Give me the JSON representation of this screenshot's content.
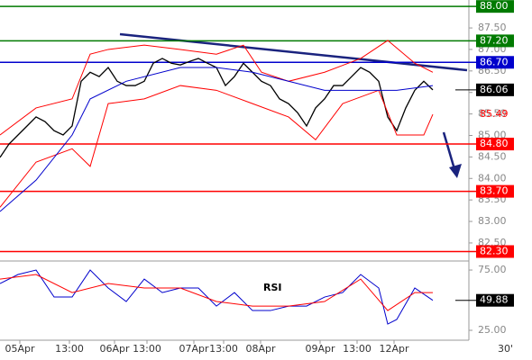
{
  "chart_data": [
    {
      "type": "line",
      "xlim": [
        0,
        104
      ],
      "ylim": [
        82.08,
        88.15
      ],
      "yticks": [
        {
          "value": 82.5,
          "label": "82.50"
        },
        {
          "value": 83,
          "label": "83.00"
        },
        {
          "value": 83.5,
          "label": "83.50"
        },
        {
          "value": 84,
          "label": "84.00"
        },
        {
          "value": 84.5,
          "label": "84.50"
        },
        {
          "value": 85,
          "label": "85.00"
        },
        {
          "value": 85.5,
          "label": "85.50"
        },
        {
          "value": 86,
          "label": "86.00"
        },
        {
          "value": 86.5,
          "label": "86.50"
        },
        {
          "value": 87,
          "label": "87.00"
        },
        {
          "value": 87.5,
          "label": "87.50"
        }
      ],
      "levels": [
        {
          "value": 88,
          "label": "88.00",
          "color": "#007a00"
        },
        {
          "value": 87.2,
          "label": "87.20",
          "color": "#007a00"
        },
        {
          "value": 86.7,
          "label": "86.70",
          "color": "#0000cc"
        },
        {
          "value": 84.8,
          "label": "84.80",
          "color": "#ff0000"
        },
        {
          "value": 83.7,
          "label": "83.70",
          "color": "#ff0000"
        },
        {
          "value": 82.3,
          "label": "82.30",
          "color": "#ff0000"
        }
      ],
      "markers": [
        {
          "value": 86.06,
          "label": "86.06",
          "color": "#000000",
          "boxed": true
        },
        {
          "value": 85.49,
          "label": "85.49",
          "color": "#ff0000",
          "boxed": false
        }
      ],
      "series": [
        {
          "color": "#000000",
          "width": 1.3,
          "x": [
            0,
            2,
            4,
            6,
            8,
            10,
            12,
            14,
            16,
            18,
            20,
            22,
            24,
            26,
            28,
            30,
            32,
            34,
            36,
            38,
            40,
            42,
            44,
            46,
            48,
            50,
            52,
            54,
            56,
            58,
            60,
            62,
            64,
            66,
            68,
            70,
            72,
            74,
            76,
            78,
            80,
            82,
            84,
            86,
            88,
            90,
            92,
            94,
            96
          ],
          "values": [
            84.49,
            84.8,
            85.01,
            85.22,
            85.43,
            85.32,
            85.11,
            85.01,
            85.22,
            86.26,
            86.47,
            86.37,
            86.58,
            86.26,
            86.16,
            86.16,
            86.26,
            86.68,
            86.79,
            86.68,
            86.64,
            86.72,
            86.79,
            86.68,
            86.58,
            86.16,
            86.37,
            86.68,
            86.47,
            86.26,
            86.16,
            85.85,
            85.74,
            85.53,
            85.22,
            85.64,
            85.85,
            86.16,
            86.16,
            86.37,
            86.58,
            86.47,
            86.26,
            85.43,
            85.11,
            85.64,
            86.05,
            86.26,
            86.06
          ]
        },
        {
          "color": "#ff0000",
          "width": 1,
          "x": [
            0,
            8,
            16,
            20,
            24,
            32,
            40,
            48,
            54,
            58,
            64,
            72,
            80,
            86,
            92,
            96
          ],
          "values": [
            85.01,
            85.64,
            85.85,
            86.89,
            87,
            87.1,
            87,
            86.89,
            87.1,
            86.47,
            86.26,
            86.47,
            86.79,
            87.21,
            86.68,
            86.47
          ]
        },
        {
          "color": "#ff0000",
          "width": 1,
          "x": [
            0,
            8,
            16,
            20,
            24,
            32,
            40,
            48,
            56,
            64,
            70,
            76,
            84,
            88,
            94,
            96
          ],
          "values": [
            83.33,
            84.38,
            84.69,
            84.28,
            85.74,
            85.85,
            86.16,
            86.05,
            85.74,
            85.43,
            84.9,
            85.74,
            86.05,
            85.01,
            85.01,
            85.49
          ]
        },
        {
          "color": "#0000cc",
          "width": 1,
          "x": [
            0,
            8,
            16,
            20,
            28,
            40,
            48,
            56,
            64,
            72,
            80,
            88,
            96
          ],
          "values": [
            83.23,
            83.96,
            85.01,
            85.85,
            86.26,
            86.58,
            86.58,
            86.47,
            86.26,
            86.05,
            86.05,
            86.05,
            86.16
          ]
        }
      ]
    },
    {
      "type": "line",
      "title": "RSI",
      "xlim": [
        0,
        104
      ],
      "ylim": [
        16.8,
        82.5
      ],
      "yticks": [
        {
          "value": 25,
          "label": "25.00"
        },
        {
          "value": 75,
          "label": "75.00"
        }
      ],
      "markers": [
        {
          "value": 49.88,
          "label": "49.88",
          "color": "#000000",
          "boxed": true
        }
      ],
      "xticks": [
        {
          "value": 4.4,
          "label": "05Apr"
        },
        {
          "value": 15.4,
          "label": "13:00"
        },
        {
          "value": 25.4,
          "label": "06Apr"
        },
        {
          "value": 32.6,
          "label": "13:00"
        },
        {
          "value": 43,
          "label": "07Apr"
        },
        {
          "value": 49.6,
          "label": "13:00"
        },
        {
          "value": 57.8,
          "label": "08Apr"
        },
        {
          "value": 71,
          "label": "09Apr"
        },
        {
          "value": 79.2,
          "label": "13:00"
        },
        {
          "value": 87.4,
          "label": "12Apr"
        }
      ],
      "timeframe": "30'",
      "series": [
        {
          "color": "#0000cc",
          "width": 1,
          "x": [
            0,
            4,
            8,
            12,
            16,
            20,
            24,
            28,
            32,
            36,
            40,
            44,
            48,
            52,
            56,
            60,
            64,
            68,
            72,
            76,
            80,
            84,
            86,
            88,
            92,
            96
          ],
          "values": [
            63.8,
            71.3,
            75,
            52.6,
            52.6,
            75,
            60.1,
            48.9,
            67.5,
            56.3,
            60.1,
            60.1,
            45.1,
            56.3,
            41.4,
            41.4,
            45.1,
            45.1,
            52.6,
            56.3,
            71.3,
            60.1,
            30.2,
            34,
            60.1,
            49.9
          ]
        },
        {
          "color": "#ff0000",
          "width": 1,
          "x": [
            0,
            8,
            16,
            24,
            32,
            40,
            48,
            56,
            64,
            72,
            80,
            86,
            92,
            96
          ],
          "values": [
            67.5,
            71.3,
            56.3,
            63.8,
            60.1,
            60.1,
            48.9,
            45.1,
            45.1,
            48.9,
            67.5,
            41.4,
            56.3,
            56.3
          ]
        }
      ]
    }
  ]
}
